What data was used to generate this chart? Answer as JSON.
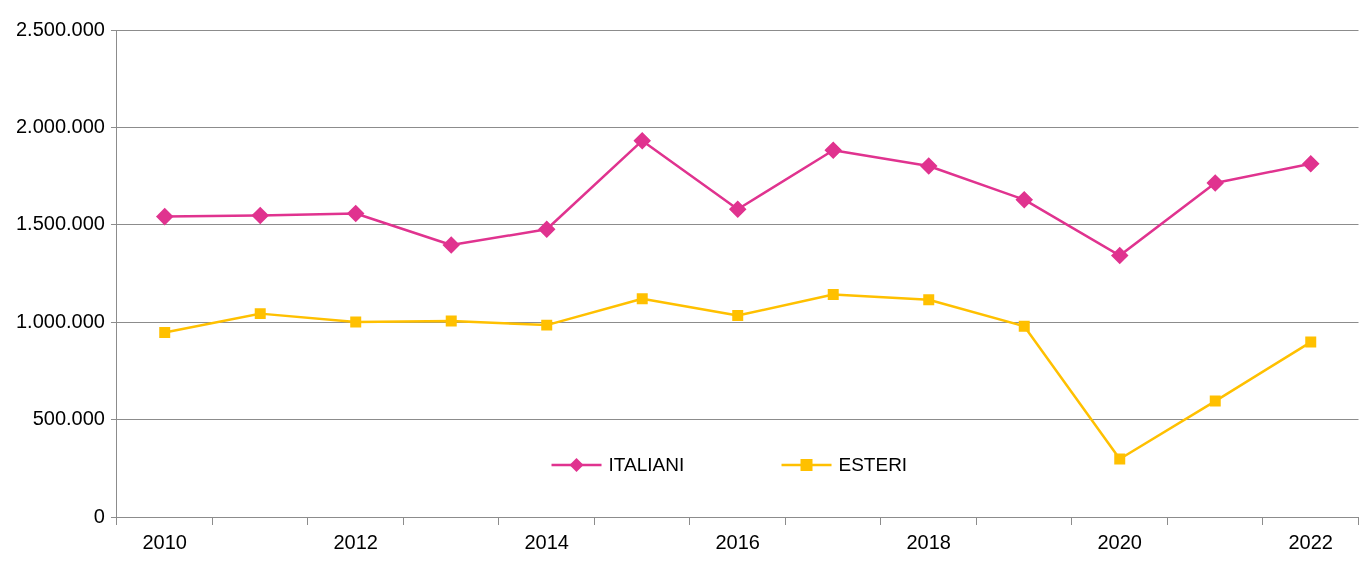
{
  "chart_data": {
    "type": "line",
    "categories": [
      "2010",
      null,
      "2012",
      null,
      "2014",
      null,
      "2016",
      null,
      "2018",
      null,
      "2020",
      null,
      "2022"
    ],
    "series": [
      {
        "name": "ITALIANI",
        "color": "#e0338f",
        "marker": "diamond",
        "values": [
          1542000,
          1548000,
          1558000,
          1396000,
          1477000,
          1932000,
          1580000,
          1883000,
          1802000,
          1629000,
          1342000,
          1715000,
          1813000
        ]
      },
      {
        "name": "ESTERI",
        "color": "#ffc000",
        "marker": "square",
        "values": [
          947000,
          1044000,
          1001000,
          1006000,
          985000,
          1120000,
          1034000,
          1142000,
          1115000,
          979000,
          298000,
          595000,
          898000
        ]
      }
    ],
    "ylim": [
      0,
      2500000
    ],
    "yticks": [
      0,
      {
        "value": 500000,
        "label": "500.000"
      },
      {
        "value": 1000000,
        "label": "1.000.000"
      },
      {
        "value": 1500000,
        "label": "1.500.000"
      },
      {
        "value": 2000000,
        "label": "2.000.000"
      },
      {
        "value": 2500000,
        "label": "2.500.000"
      }
    ],
    "grid": "y",
    "legend": "bottom"
  }
}
